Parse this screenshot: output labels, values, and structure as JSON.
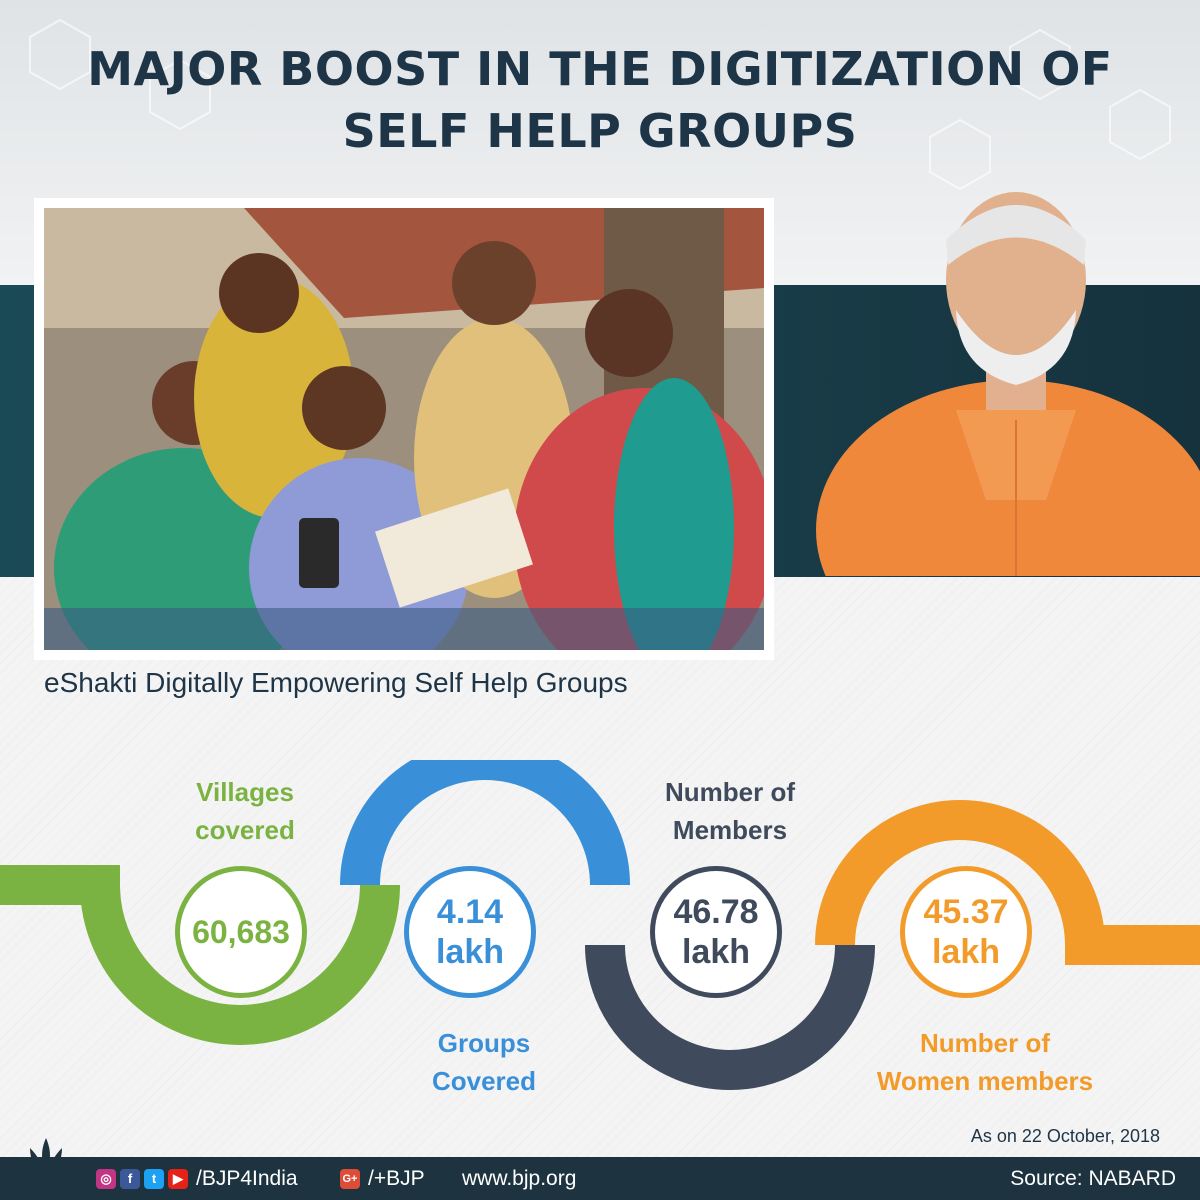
{
  "headline": {
    "line1": "MAJOR BOOST IN THE DIGITIZATION OF",
    "line2": "SELF HELP GROUPS"
  },
  "photo": {
    "caption": "eShakti Digitally Empowering Self Help Groups"
  },
  "stats": {
    "villages": {
      "label1": "Villages",
      "label2": "covered",
      "value": "60,683",
      "color": "#7bb342"
    },
    "groups": {
      "label1": "Groups",
      "label2": "Covered",
      "value": "4.14",
      "unit": "lakh",
      "color": "#3a8fd9"
    },
    "members": {
      "label1": "Number of",
      "label2": "Members",
      "value": "46.78",
      "unit": "lakh",
      "color": "#3f4a5c"
    },
    "women": {
      "label1": "Number of",
      "label2": "Women members",
      "value": "45.37",
      "unit": "lakh",
      "color": "#f29b2b"
    }
  },
  "as_on": "As on 22 October, 2018",
  "footer": {
    "social_handle": "/BJP4India",
    "gplus_handle": "/+BJP",
    "website": "www.bjp.org",
    "source": "Source: NABARD",
    "icons": [
      "instagram-icon",
      "facebook-icon",
      "twitter-icon",
      "youtube-icon",
      "google-plus-icon"
    ]
  },
  "colors": {
    "navy": "#1e3447",
    "teal": "#1b4a57",
    "saffron": "#f29b2b",
    "green": "#7bb342",
    "blue": "#3a8fd9",
    "slate": "#3f4a5c"
  }
}
